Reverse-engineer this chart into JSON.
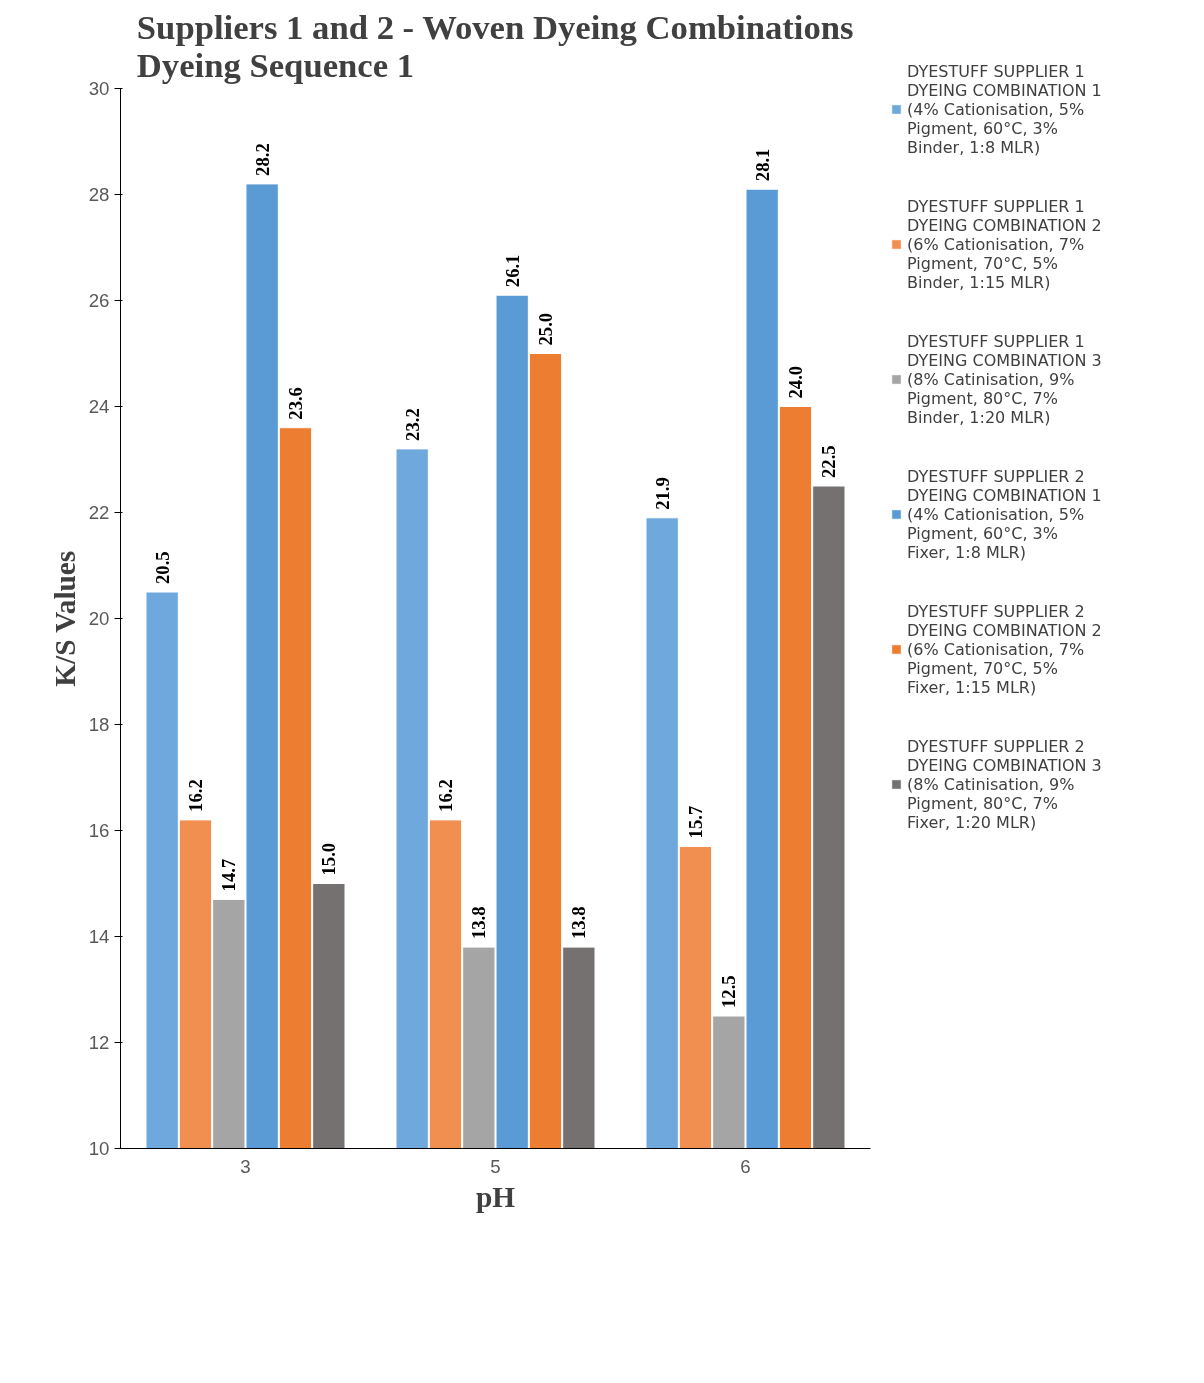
{
  "chart_data": {
    "type": "bar",
    "title": "Suppliers 1 and 2 - Woven Dyeing Combinations\nDyeing Sequence 1",
    "xlabel": "pH",
    "ylabel": "K/S Values",
    "categories": [
      "3",
      "5",
      "6"
    ],
    "series": [
      {
        "name": "DYESTUFF SUPPLIER 1 DYEING COMBINATION 1 (4% Cationisation, 5% Pigment, 60°C, 3% Binder, 1:8 MLR)",
        "color": "#6fa8dc",
        "values": [
          20.5,
          23.2,
          21.9
        ],
        "value_labels": [
          "20.5",
          "23.2",
          "21.9"
        ]
      },
      {
        "name": "DYESTUFF SUPPLIER 1 DYEING COMBINATION 2 (6% Cationisation, 7% Pigment, 70°C, 5% Binder, 1:15 MLR)",
        "color": "#f08f50",
        "values": [
          16.2,
          16.2,
          15.7
        ],
        "value_labels": [
          "16.2",
          "16.2",
          "15.7"
        ]
      },
      {
        "name": "DYESTUFF SUPPLIER 1 DYEING COMBINATION 3 (8% Catinisation, 9% Pigment, 80°C, 7% Binder, 1:20 MLR)",
        "color": "#a5a5a5",
        "values": [
          14.7,
          13.8,
          12.5
        ],
        "value_labels": [
          "14.7",
          "13.8",
          "12.5"
        ]
      },
      {
        "name": "DYESTUFF SUPPLIER 2 DYEING COMBINATION 1 (4% Cationisation, 5% Pigment, 60°C, 3% Fixer, 1:8 MLR)",
        "color": "#5b9bd5",
        "values": [
          28.2,
          26.1,
          28.1
        ],
        "value_labels": [
          "28.2",
          "26.1",
          "28.1"
        ]
      },
      {
        "name": "DYESTUFF SUPPLIER 2 DYEING COMBINATION 2 (6% Cationisation, 7% Pigment, 70°C, 5% Fixer, 1:15 MLR)",
        "color": "#ed7d31",
        "values": [
          23.6,
          25.0,
          24.0
        ],
        "value_labels": [
          "23.6",
          "25.0",
          "24.0"
        ]
      },
      {
        "name": "DYESTUFF SUPPLIER 2 DYEING COMBINATION 3 (8% Catinisation, 9% Pigment, 80°C, 7% Fixer, 1:20 MLR)",
        "color": "#767171",
        "values": [
          15.0,
          13.8,
          22.5
        ],
        "value_labels": [
          "15.0",
          "13.8",
          "22.5"
        ]
      }
    ],
    "ylim": [
      10,
      30
    ],
    "yticks": [
      10,
      12,
      14,
      16,
      18,
      20,
      22,
      24,
      26,
      28,
      30
    ],
    "grid": false,
    "legend": "right"
  }
}
